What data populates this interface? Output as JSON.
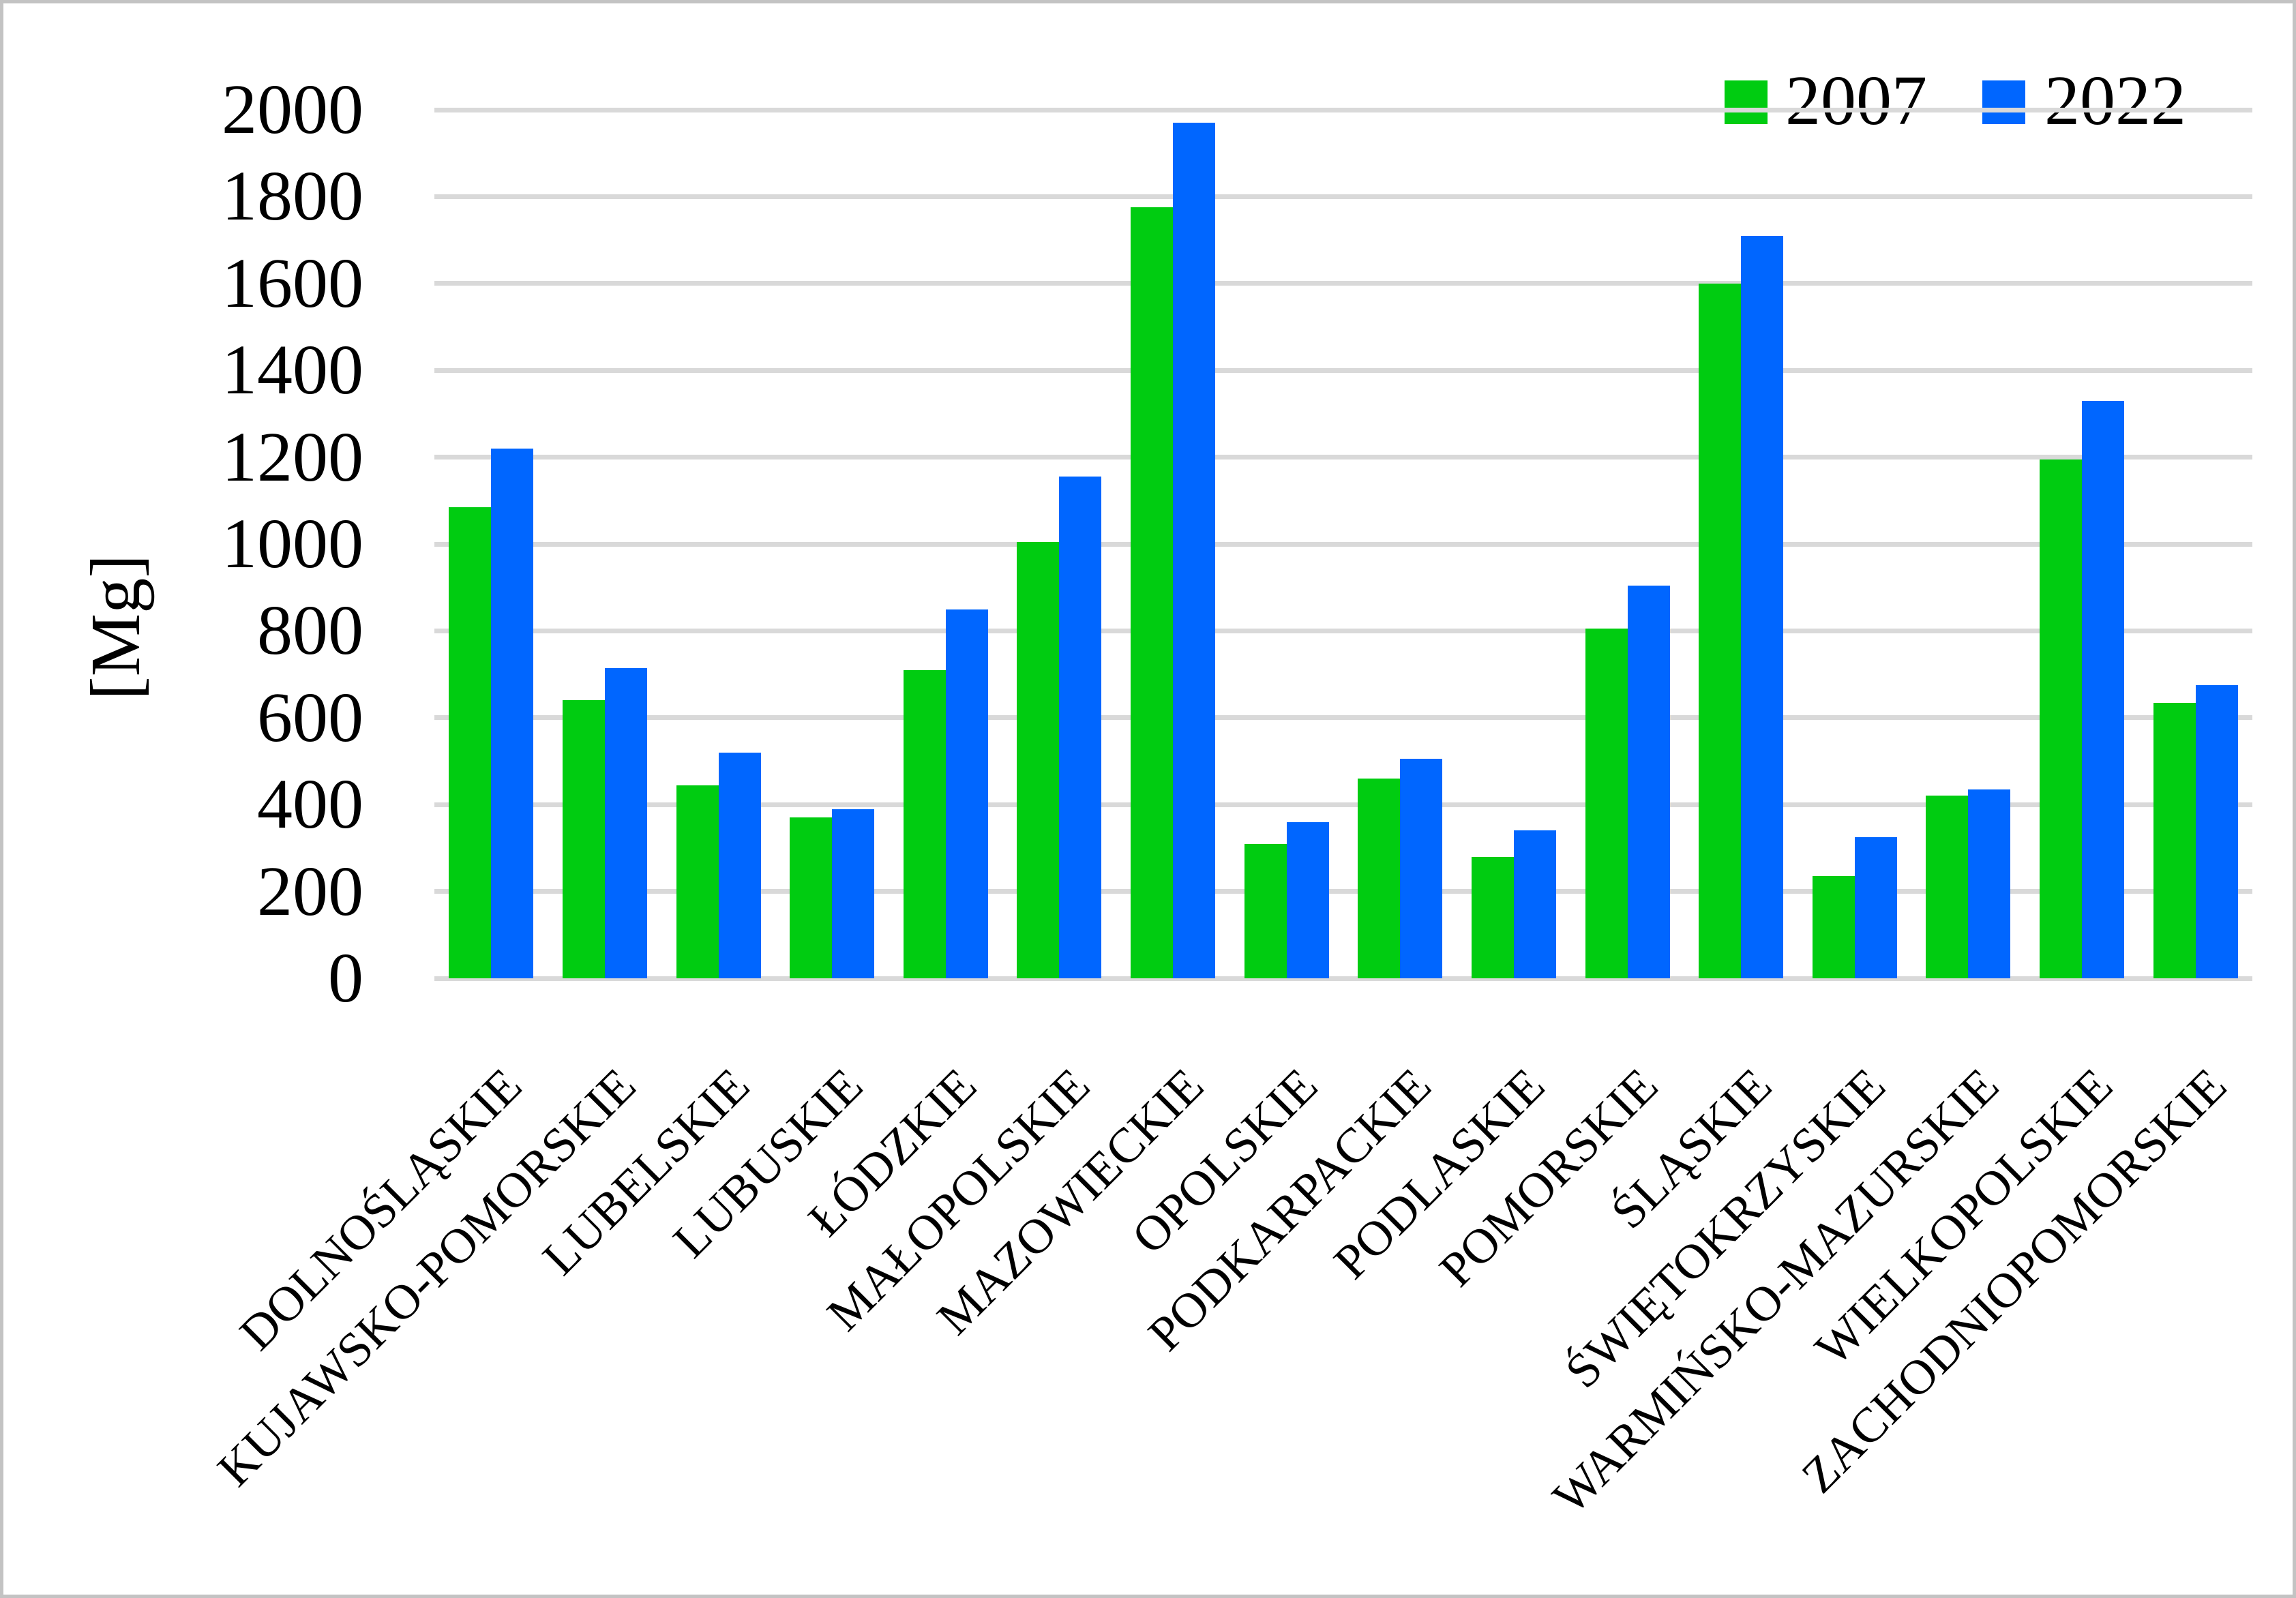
{
  "figure": {
    "background": "#ffffff",
    "border_color": "#c3c3c3"
  },
  "legend": {
    "position": "top-right",
    "items": [
      {
        "label": "2007",
        "color": "#00cc11"
      },
      {
        "label": "2022",
        "color": "#0066ff"
      }
    ]
  },
  "y_axis": {
    "title": "[Mg]",
    "tick_labels": [
      "0",
      "200",
      "400",
      "600",
      "800",
      "1000",
      "1200",
      "1400",
      "1600",
      "1800",
      "2000"
    ]
  },
  "chart_data": {
    "type": "bar",
    "title": "",
    "xlabel": "",
    "ylabel": "[Mg]",
    "ylim": [
      0,
      2000
    ],
    "ytick_step": 200,
    "grid": "horizontal",
    "gridline_color": "#d9d9d9",
    "legend_position": "top-right",
    "categories": [
      "DOLNOŚLĄSKIE",
      "KUJAWSKO-POMORSKIE",
      "LUBELSKIE",
      "LUBUSKIE",
      "ŁÓDZKIE",
      "MAŁOPOLSKIE",
      "MAZOWIECKIE",
      "OPOLSKIE",
      "PODKARPACKIE",
      "PODLASKIE",
      "POMORSKIE",
      "ŚLĄSKIE",
      "ŚWIĘTOKRZYSKIE",
      "WARMIŃSKO-MAZURSKIE",
      "WIELKOPOLSKIE",
      "ZACHODNIOPOMORSKIE"
    ],
    "series": [
      {
        "name": "2007",
        "color": "#00cc11",
        "values": [
          1085,
          640,
          445,
          370,
          710,
          1005,
          1775,
          310,
          460,
          280,
          805,
          1600,
          235,
          420,
          1195,
          635
        ]
      },
      {
        "name": "2022",
        "color": "#0066ff",
        "values": [
          1220,
          715,
          520,
          390,
          850,
          1155,
          1970,
          360,
          505,
          340,
          905,
          1710,
          325,
          435,
          1330,
          675
        ]
      }
    ]
  }
}
